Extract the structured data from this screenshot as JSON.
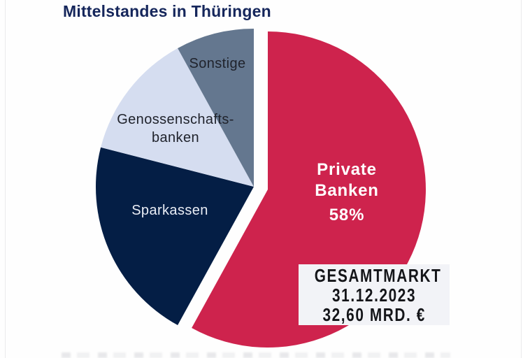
{
  "header": {
    "title": "Mittelstandes in Thüringen",
    "title_color": "#15265b"
  },
  "chart_data": {
    "type": "pie",
    "title": "Mittelstandes in Thüringen",
    "unit": "%",
    "direction": "clockwise",
    "start_angle_deg": 0,
    "legend_position": "none",
    "slices": [
      {
        "label": "Private Banken",
        "value": 58,
        "value_label": "58%",
        "color": "#ce234d",
        "text_color": "#ffffff",
        "exploded": true
      },
      {
        "label": "Sparkassen",
        "value": 21,
        "value_label": "",
        "color": "#041e45",
        "text_color": "#e9edf5",
        "exploded": false
      },
      {
        "label": "Genossenschafts-banken",
        "value": 13,
        "value_label": "",
        "color": "#d5ddf0",
        "text_color": "#20232c",
        "exploded": false
      },
      {
        "label": "Sonstige",
        "value": 8,
        "value_label": "",
        "color": "#64778f",
        "text_color": "#20232c",
        "exploded": false
      }
    ],
    "annotation_box": {
      "lines": [
        "GESAMTMARKT",
        "31.12.2023",
        "32,60 MRD. €"
      ]
    }
  },
  "labels": {
    "sonstige": "Sonstige",
    "geno_line1": "Genossenschafts-",
    "geno_line2": "banken",
    "sparkassen": "Sparkassen",
    "private_line1": "Private",
    "private_line2": "Banken",
    "private_value": "58%"
  },
  "info_box": {
    "line1": "GESAMTMARKT",
    "line2": "31.12.2023",
    "line3": "32,60 MRD. €"
  }
}
